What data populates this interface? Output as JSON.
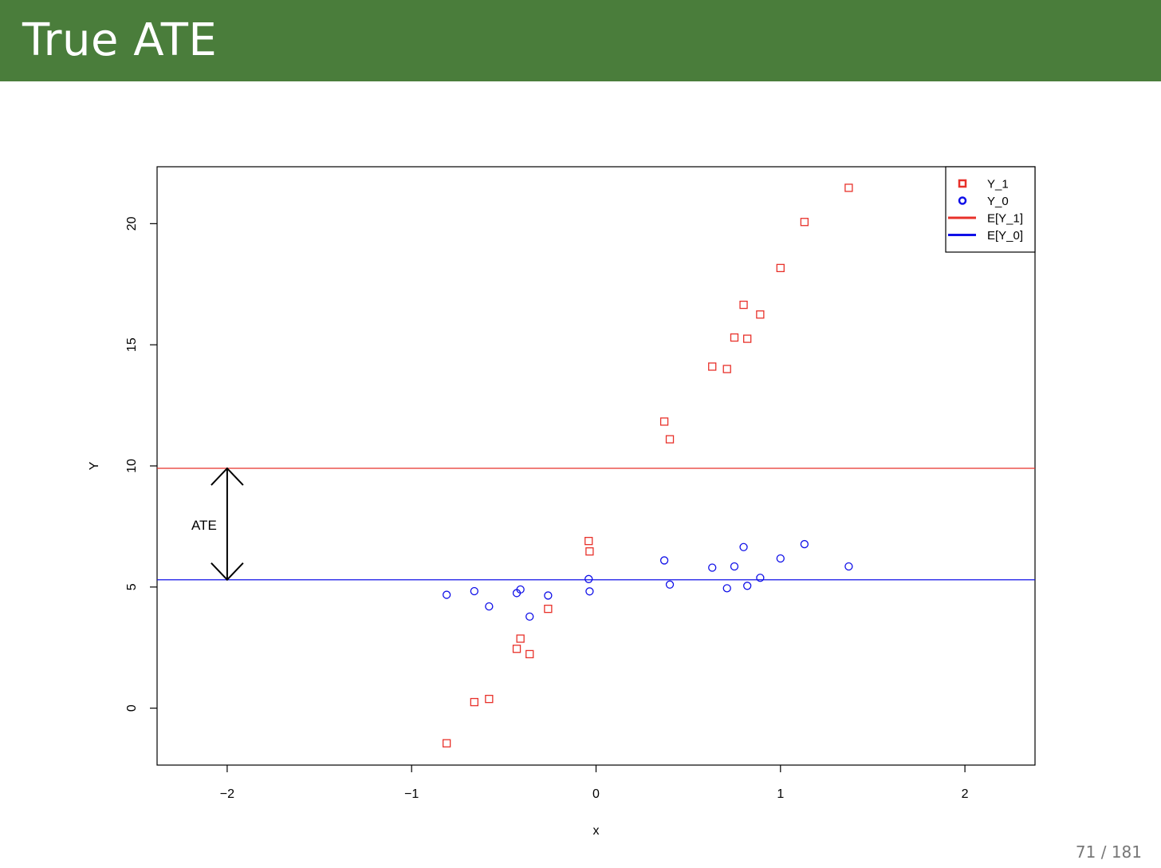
{
  "slide": {
    "title": "True ATE",
    "page_number": "71 / 181"
  },
  "colors": {
    "header_bg": "#4a7d3b",
    "y1": "#e8312a",
    "y0": "#1010e8"
  },
  "chart_data": {
    "type": "scatter",
    "title": "",
    "xlabel": "x",
    "ylabel": "Y",
    "xlim": [
      -2.38,
      2.38
    ],
    "ylim": [
      -2.35,
      22.35
    ],
    "x_ticks": [
      -2,
      -1,
      0,
      1,
      2
    ],
    "x_tick_labels": [
      "−2",
      "−1",
      "0",
      "1",
      "2"
    ],
    "y_ticks": [
      0,
      5,
      10,
      15,
      20
    ],
    "y_tick_labels": [
      "0",
      "5",
      "10",
      "15",
      "20"
    ],
    "grid": false,
    "legend_position": "top-right",
    "series": [
      {
        "name": "Y_1",
        "marker": "square",
        "color": "#e8312a",
        "points": [
          [
            -0.81,
            -1.45
          ],
          [
            -0.66,
            0.25
          ],
          [
            -0.58,
            0.38
          ],
          [
            -0.43,
            2.45
          ],
          [
            -0.41,
            2.87
          ],
          [
            -0.36,
            2.23
          ],
          [
            -0.26,
            4.1
          ],
          [
            -0.04,
            6.9
          ],
          [
            -0.035,
            6.47
          ],
          [
            0.37,
            11.83
          ],
          [
            0.4,
            11.1
          ],
          [
            0.63,
            14.1
          ],
          [
            0.71,
            14.0
          ],
          [
            0.75,
            15.3
          ],
          [
            0.8,
            16.65
          ],
          [
            0.82,
            15.25
          ],
          [
            0.89,
            16.25
          ],
          [
            1.0,
            18.17
          ],
          [
            1.13,
            20.07
          ],
          [
            1.37,
            21.48
          ]
        ]
      },
      {
        "name": "Y_0",
        "marker": "circle",
        "color": "#1010e8",
        "points": [
          [
            -0.81,
            4.68
          ],
          [
            -0.66,
            4.83
          ],
          [
            -0.58,
            4.2
          ],
          [
            -0.43,
            4.75
          ],
          [
            -0.41,
            4.9
          ],
          [
            -0.36,
            3.78
          ],
          [
            -0.26,
            4.65
          ],
          [
            -0.04,
            5.33
          ],
          [
            -0.035,
            4.82
          ],
          [
            0.37,
            6.1
          ],
          [
            0.4,
            5.1
          ],
          [
            0.63,
            5.8
          ],
          [
            0.71,
            4.95
          ],
          [
            0.75,
            5.85
          ],
          [
            0.8,
            6.65
          ],
          [
            0.82,
            5.05
          ],
          [
            0.89,
            5.38
          ],
          [
            1.0,
            6.18
          ],
          [
            1.13,
            6.77
          ],
          [
            1.37,
            5.85
          ]
        ]
      }
    ],
    "hlines": [
      {
        "name": "E[Y_1]",
        "y": 9.9,
        "color": "#e8312a"
      },
      {
        "name": "E[Y_0]",
        "y": 5.3,
        "color": "#1010e8"
      }
    ],
    "annotation": {
      "label": "ATE",
      "x": -2,
      "y_from": 5.3,
      "y_to": 9.9
    },
    "legend": [
      "Y_1",
      "Y_0",
      "E[Y_1]",
      "E[Y_0]"
    ]
  }
}
